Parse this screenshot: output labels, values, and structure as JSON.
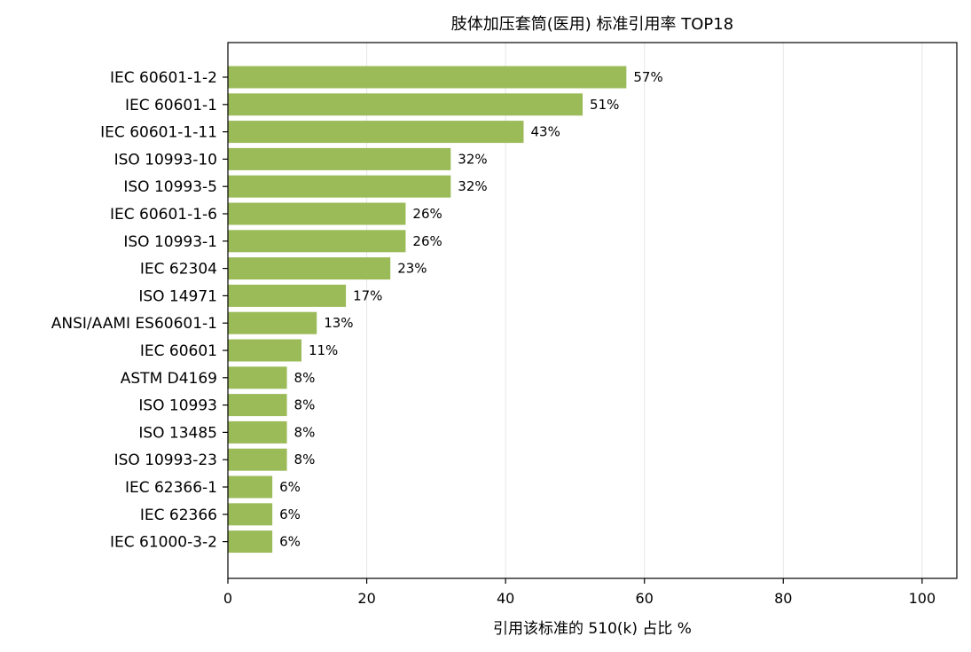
{
  "chart_data": {
    "type": "bar",
    "orientation": "horizontal",
    "title": "肢体加压套筒(医用) 标准引用率 TOP18",
    "xlabel": "引用该标准的 510(k) 占比 %",
    "ylabel": "",
    "xlim": [
      0,
      105
    ],
    "xticks": [
      0,
      20,
      40,
      60,
      80,
      100
    ],
    "grid": "vertical",
    "bar_color": "#9bbb59",
    "categories": [
      "IEC 60601-1-2",
      "IEC 60601-1",
      "IEC 60601-1-11",
      "ISO 10993-10",
      "ISO 10993-5",
      "IEC 60601-1-6",
      "ISO 10993-1",
      "IEC 62304",
      "ISO 14971",
      "ANSI/AAMI ES60601-1",
      "IEC 60601",
      "ASTM D4169",
      "ISO 10993",
      "ISO 13485",
      "ISO 10993-23",
      "IEC 62366-1",
      "IEC 62366",
      "IEC 61000-3-2"
    ],
    "values": [
      57.4,
      51.1,
      42.6,
      32.1,
      32.1,
      25.6,
      25.6,
      23.4,
      17.0,
      12.8,
      10.6,
      8.5,
      8.5,
      8.5,
      8.5,
      6.4,
      6.4,
      6.4
    ],
    "value_labels": [
      "57%",
      "51%",
      "43%",
      "32%",
      "32%",
      "26%",
      "26%",
      "23%",
      "17%",
      "13%",
      "11%",
      "8%",
      "8%",
      "8%",
      "8%",
      "6%",
      "6%",
      "6%"
    ]
  }
}
